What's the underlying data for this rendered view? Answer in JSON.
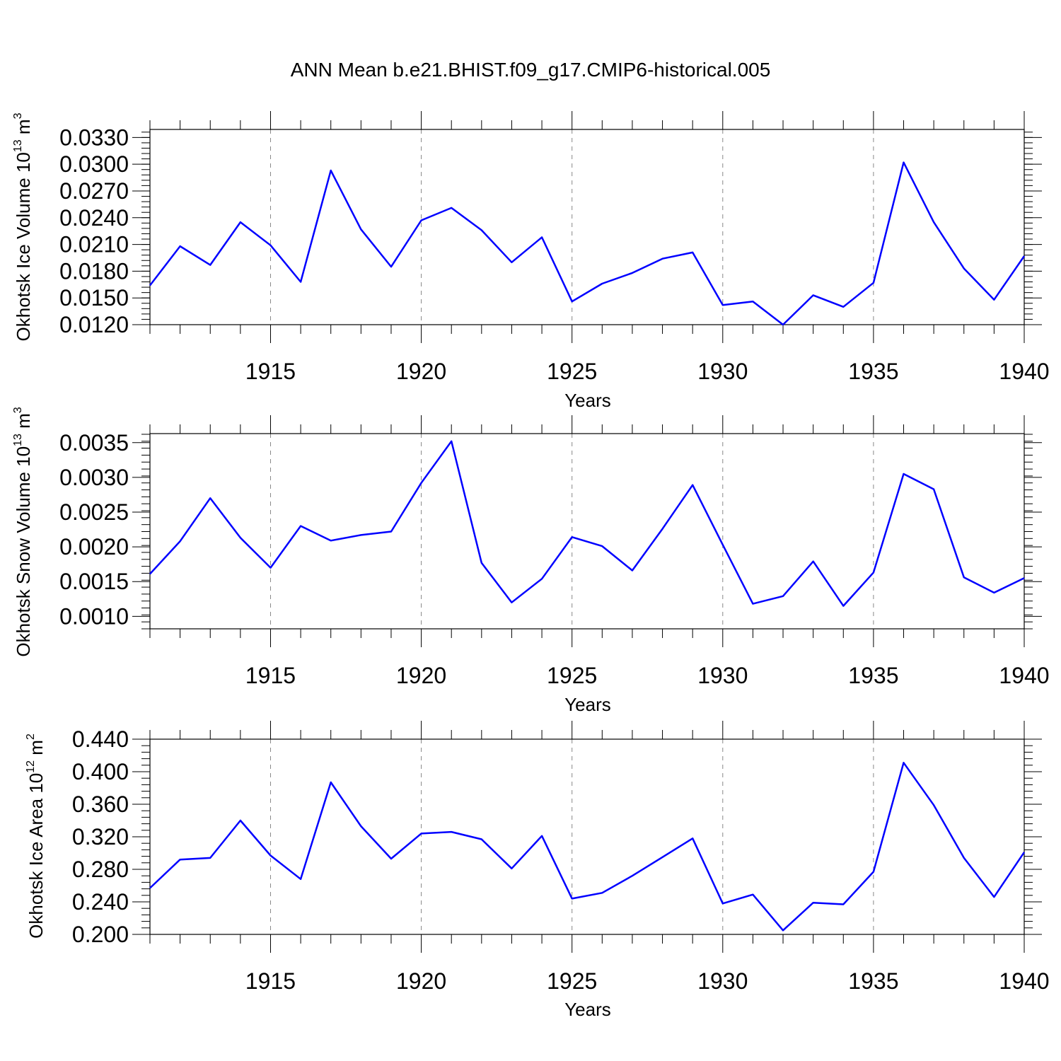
{
  "figure_title": "ANN Mean b.e21.BHIST.f09_g17.CMIP6-historical.005",
  "colors": {
    "series": "#0000ff",
    "axis": "#000000",
    "grid": "#888888"
  },
  "chart_data": [
    {
      "type": "line",
      "name": "ice-volume",
      "ylabel_main": "Okhotsk Ice Volume 10",
      "ylabel_exp": "13",
      "ylabel_unit": " m",
      "ylabel_unit_exp": "3",
      "xlabel": "Years",
      "xlim": [
        1911,
        1940
      ],
      "ylim": [
        0.012,
        0.0339
      ],
      "yticks": [
        0.012,
        0.015,
        0.018,
        0.021,
        0.024,
        0.027,
        0.03,
        0.033
      ],
      "ytick_labels": [
        "0.0120",
        "0.0150",
        "0.0180",
        "0.0210",
        "0.0240",
        "0.0270",
        "0.0300",
        "0.0330"
      ],
      "yminor_step": 0.0006,
      "xticks": [
        1915,
        1920,
        1925,
        1930,
        1935,
        1940
      ],
      "xtick_labels": [
        "1915",
        "1920",
        "1925",
        "1930",
        "1935",
        "1940"
      ],
      "grid": "vertical dashed at major x ticks",
      "x": [
        1911,
        1912,
        1913,
        1914,
        1915,
        1916,
        1917,
        1918,
        1919,
        1920,
        1921,
        1922,
        1923,
        1924,
        1925,
        1926,
        1927,
        1928,
        1929,
        1930,
        1931,
        1932,
        1933,
        1934,
        1935,
        1936,
        1937,
        1938,
        1939,
        1940
      ],
      "values": [
        0.0164,
        0.0208,
        0.0187,
        0.0235,
        0.0209,
        0.0168,
        0.0293,
        0.0227,
        0.0185,
        0.0237,
        0.0251,
        0.0226,
        0.019,
        0.0218,
        0.0146,
        0.0166,
        0.0178,
        0.0194,
        0.0201,
        0.0142,
        0.0146,
        0.012,
        0.0153,
        0.014,
        0.0167,
        0.0302,
        0.0235,
        0.0183,
        0.0148,
        0.0197
      ]
    },
    {
      "type": "line",
      "name": "snow-volume",
      "ylabel_main": "Okhotsk Snow Volume 10",
      "ylabel_exp": "13",
      "ylabel_unit": " m",
      "ylabel_unit_exp": "3",
      "xlabel": "Years",
      "xlim": [
        1911,
        1940
      ],
      "ylim": [
        0.00082,
        0.00363
      ],
      "yticks": [
        0.001,
        0.0015,
        0.002,
        0.0025,
        0.003,
        0.0035
      ],
      "ytick_labels": [
        "0.0010",
        "0.0015",
        "0.0020",
        "0.0025",
        "0.0030",
        "0.0035"
      ],
      "yminor_step": 0.0001,
      "xticks": [
        1915,
        1920,
        1925,
        1930,
        1935,
        1940
      ],
      "xtick_labels": [
        "1915",
        "1920",
        "1925",
        "1930",
        "1935",
        "1940"
      ],
      "grid": "vertical dashed at major x ticks",
      "x": [
        1911,
        1912,
        1913,
        1914,
        1915,
        1916,
        1917,
        1918,
        1919,
        1920,
        1921,
        1922,
        1923,
        1924,
        1925,
        1926,
        1927,
        1928,
        1929,
        1930,
        1931,
        1932,
        1933,
        1934,
        1935,
        1936,
        1937,
        1938,
        1939,
        1940
      ],
      "values": [
        0.00161,
        0.00208,
        0.0027,
        0.00213,
        0.0017,
        0.0023,
        0.00209,
        0.00217,
        0.00222,
        0.00292,
        0.00352,
        0.00177,
        0.0012,
        0.00154,
        0.00214,
        0.00201,
        0.00166,
        0.00226,
        0.00289,
        0.00203,
        0.00118,
        0.00129,
        0.00179,
        0.00115,
        0.00163,
        0.00305,
        0.00283,
        0.00156,
        0.00134,
        0.00155
      ]
    },
    {
      "type": "line",
      "name": "ice-area",
      "ylabel_main": "Okhotsk Ice Area 10",
      "ylabel_exp": "12",
      "ylabel_unit": " m",
      "ylabel_unit_exp": "2",
      "xlabel": "Years",
      "xlim": [
        1911,
        1940
      ],
      "ylim": [
        0.2,
        0.44
      ],
      "yticks": [
        0.2,
        0.24,
        0.28,
        0.32,
        0.36,
        0.4,
        0.44
      ],
      "ytick_labels": [
        "0.200",
        "0.240",
        "0.280",
        "0.320",
        "0.360",
        "0.400",
        "0.440"
      ],
      "yminor_step": 0.008,
      "xticks": [
        1915,
        1920,
        1925,
        1930,
        1935,
        1940
      ],
      "xtick_labels": [
        "1915",
        "1920",
        "1925",
        "1930",
        "1935",
        "1940"
      ],
      "grid": "vertical dashed at major x ticks",
      "x": [
        1911,
        1912,
        1913,
        1914,
        1915,
        1916,
        1917,
        1918,
        1919,
        1920,
        1921,
        1922,
        1923,
        1924,
        1925,
        1926,
        1927,
        1928,
        1929,
        1930,
        1931,
        1932,
        1933,
        1934,
        1935,
        1936,
        1937,
        1938,
        1939,
        1940
      ],
      "values": [
        0.257,
        0.292,
        0.294,
        0.34,
        0.297,
        0.268,
        0.387,
        0.333,
        0.293,
        0.324,
        0.326,
        0.317,
        0.281,
        0.321,
        0.244,
        0.251,
        0.272,
        0.295,
        0.318,
        0.238,
        0.249,
        0.205,
        0.239,
        0.237,
        0.277,
        0.411,
        0.359,
        0.294,
        0.246,
        0.301
      ]
    }
  ]
}
